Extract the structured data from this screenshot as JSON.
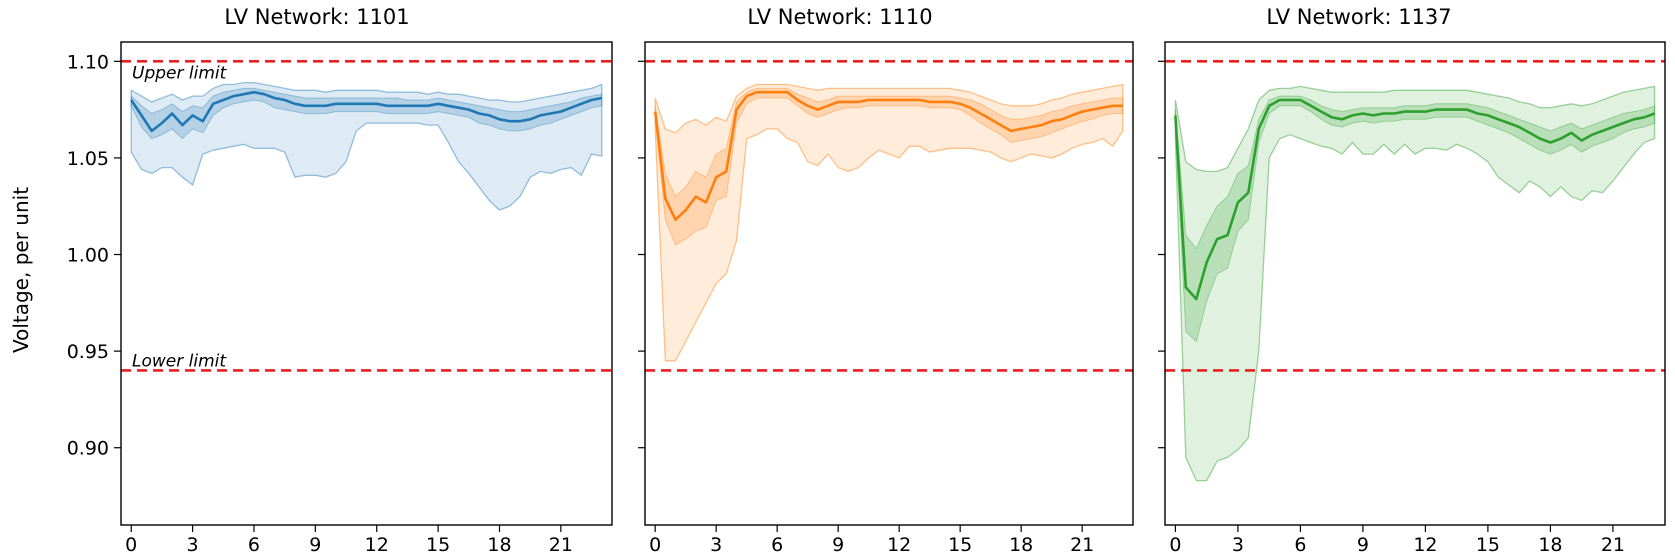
{
  "figure": {
    "ylabel": "Voltage, per unit",
    "upper_limit_label": "Upper limit",
    "lower_limit_label": "Lower limit",
    "limit_color": "#e8201e"
  },
  "chart_data": [
    {
      "type": "line",
      "title": "LV Network: 1101",
      "color": "#1f77b4",
      "xlim": [
        -0.5,
        23.5
      ],
      "ylim": [
        0.86,
        1.11
      ],
      "xticks": [
        0,
        3,
        6,
        9,
        12,
        15,
        18,
        21
      ],
      "xtick_labels": [
        "0",
        "3",
        "6",
        "9",
        "12",
        "15",
        "18",
        "21"
      ],
      "yticks": [
        0.9,
        0.95,
        1.0,
        1.05,
        1.1
      ],
      "ytick_labels": [
        "0.90",
        "0.95",
        "1.00",
        "1.05",
        "1.10"
      ],
      "upper_limit": 1.1,
      "lower_limit": 0.94,
      "x": [
        0,
        0.5,
        1,
        1.5,
        2,
        2.5,
        3,
        3.5,
        4,
        4.5,
        5,
        5.5,
        6,
        6.5,
        7,
        7.5,
        8,
        8.5,
        9,
        9.5,
        10,
        10.5,
        11,
        11.5,
        12,
        12.5,
        13,
        13.5,
        14,
        14.5,
        15,
        15.5,
        16,
        16.5,
        17,
        17.5,
        18,
        18.5,
        19,
        19.5,
        20,
        20.5,
        21,
        21.5,
        22,
        22.5,
        23
      ],
      "series": [
        {
          "role": "median",
          "values": [
            1.08,
            1.072,
            1.064,
            1.068,
            1.073,
            1.067,
            1.072,
            1.069,
            1.078,
            1.08,
            1.082,
            1.083,
            1.084,
            1.083,
            1.081,
            1.08,
            1.078,
            1.077,
            1.077,
            1.077,
            1.078,
            1.078,
            1.078,
            1.078,
            1.078,
            1.077,
            1.077,
            1.077,
            1.077,
            1.077,
            1.078,
            1.077,
            1.076,
            1.075,
            1.073,
            1.072,
            1.07,
            1.069,
            1.069,
            1.07,
            1.072,
            1.073,
            1.074,
            1.076,
            1.078,
            1.08,
            1.081
          ]
        },
        {
          "role": "inner_upper",
          "values": [
            1.082,
            1.077,
            1.073,
            1.075,
            1.078,
            1.074,
            1.077,
            1.076,
            1.082,
            1.084,
            1.085,
            1.086,
            1.086,
            1.085,
            1.084,
            1.083,
            1.082,
            1.081,
            1.081,
            1.081,
            1.081,
            1.081,
            1.081,
            1.081,
            1.081,
            1.081,
            1.081,
            1.08,
            1.08,
            1.08,
            1.081,
            1.08,
            1.079,
            1.078,
            1.077,
            1.076,
            1.075,
            1.074,
            1.074,
            1.075,
            1.076,
            1.077,
            1.078,
            1.079,
            1.081,
            1.082,
            1.083
          ]
        },
        {
          "role": "inner_lower",
          "values": [
            1.077,
            1.066,
            1.06,
            1.062,
            1.065,
            1.06,
            1.065,
            1.063,
            1.072,
            1.076,
            1.078,
            1.079,
            1.08,
            1.079,
            1.076,
            1.075,
            1.074,
            1.073,
            1.073,
            1.073,
            1.074,
            1.074,
            1.074,
            1.074,
            1.074,
            1.073,
            1.073,
            1.073,
            1.073,
            1.073,
            1.074,
            1.073,
            1.072,
            1.071,
            1.068,
            1.067,
            1.065,
            1.064,
            1.064,
            1.065,
            1.067,
            1.068,
            1.07,
            1.072,
            1.074,
            1.076,
            1.077
          ]
        },
        {
          "role": "outer_upper",
          "values": [
            1.085,
            1.082,
            1.079,
            1.081,
            1.083,
            1.08,
            1.082,
            1.082,
            1.086,
            1.088,
            1.088,
            1.089,
            1.089,
            1.088,
            1.087,
            1.086,
            1.085,
            1.085,
            1.085,
            1.084,
            1.085,
            1.085,
            1.085,
            1.085,
            1.085,
            1.084,
            1.084,
            1.084,
            1.084,
            1.083,
            1.084,
            1.083,
            1.083,
            1.082,
            1.081,
            1.08,
            1.08,
            1.079,
            1.079,
            1.08,
            1.081,
            1.082,
            1.083,
            1.084,
            1.085,
            1.086,
            1.088
          ]
        },
        {
          "role": "outer_lower",
          "values": [
            1.053,
            1.044,
            1.042,
            1.045,
            1.045,
            1.04,
            1.036,
            1.052,
            1.054,
            1.055,
            1.056,
            1.057,
            1.055,
            1.055,
            1.055,
            1.053,
            1.04,
            1.041,
            1.041,
            1.04,
            1.042,
            1.048,
            1.064,
            1.068,
            1.068,
            1.068,
            1.068,
            1.068,
            1.068,
            1.067,
            1.067,
            1.058,
            1.048,
            1.042,
            1.035,
            1.028,
            1.023,
            1.025,
            1.03,
            1.04,
            1.043,
            1.042,
            1.044,
            1.045,
            1.041,
            1.052,
            1.051
          ]
        }
      ]
    },
    {
      "type": "line",
      "title": "LV Network: 1110",
      "color": "#ff7f0e",
      "xlim": [
        -0.5,
        23.5
      ],
      "ylim": [
        0.86,
        1.11
      ],
      "xticks": [
        0,
        3,
        6,
        9,
        12,
        15,
        18,
        21
      ],
      "xtick_labels": [
        "0",
        "3",
        "6",
        "9",
        "12",
        "15",
        "18",
        "21"
      ],
      "yticks": [
        0.9,
        0.95,
        1.0,
        1.05,
        1.1
      ],
      "upper_limit": 1.1,
      "lower_limit": 0.94,
      "x": [
        0,
        0.5,
        1,
        1.5,
        2,
        2.5,
        3,
        3.5,
        4,
        4.5,
        5,
        5.5,
        6,
        6.5,
        7,
        7.5,
        8,
        8.5,
        9,
        9.5,
        10,
        10.5,
        11,
        11.5,
        12,
        12.5,
        13,
        13.5,
        14,
        14.5,
        15,
        15.5,
        16,
        16.5,
        17,
        17.5,
        18,
        18.5,
        19,
        19.5,
        20,
        20.5,
        21,
        21.5,
        22,
        22.5,
        23
      ],
      "series": [
        {
          "role": "median",
          "values": [
            1.074,
            1.029,
            1.018,
            1.023,
            1.03,
            1.027,
            1.04,
            1.043,
            1.075,
            1.082,
            1.084,
            1.084,
            1.084,
            1.084,
            1.08,
            1.077,
            1.075,
            1.077,
            1.079,
            1.079,
            1.079,
            1.08,
            1.08,
            1.08,
            1.08,
            1.08,
            1.08,
            1.079,
            1.079,
            1.079,
            1.078,
            1.076,
            1.073,
            1.07,
            1.067,
            1.064,
            1.065,
            1.066,
            1.067,
            1.069,
            1.07,
            1.072,
            1.074,
            1.075,
            1.076,
            1.077,
            1.077
          ]
        },
        {
          "role": "inner_upper",
          "values": [
            1.077,
            1.042,
            1.03,
            1.035,
            1.043,
            1.04,
            1.052,
            1.055,
            1.079,
            1.084,
            1.086,
            1.086,
            1.086,
            1.086,
            1.083,
            1.081,
            1.079,
            1.08,
            1.082,
            1.082,
            1.082,
            1.082,
            1.082,
            1.082,
            1.082,
            1.082,
            1.082,
            1.082,
            1.082,
            1.082,
            1.081,
            1.08,
            1.078,
            1.075,
            1.072,
            1.07,
            1.07,
            1.071,
            1.072,
            1.074,
            1.075,
            1.077,
            1.078,
            1.079,
            1.08,
            1.081,
            1.081
          ]
        },
        {
          "role": "inner_lower",
          "values": [
            1.07,
            1.018,
            1.005,
            1.008,
            1.012,
            1.014,
            1.028,
            1.03,
            1.068,
            1.078,
            1.081,
            1.081,
            1.081,
            1.081,
            1.077,
            1.073,
            1.071,
            1.073,
            1.075,
            1.076,
            1.076,
            1.077,
            1.077,
            1.077,
            1.077,
            1.077,
            1.077,
            1.076,
            1.076,
            1.076,
            1.075,
            1.072,
            1.068,
            1.065,
            1.062,
            1.058,
            1.059,
            1.06,
            1.061,
            1.063,
            1.065,
            1.067,
            1.069,
            1.07,
            1.072,
            1.073,
            1.073
          ]
        },
        {
          "role": "outer_upper",
          "values": [
            1.081,
            1.065,
            1.063,
            1.068,
            1.07,
            1.067,
            1.071,
            1.069,
            1.082,
            1.086,
            1.088,
            1.088,
            1.088,
            1.088,
            1.087,
            1.086,
            1.085,
            1.086,
            1.086,
            1.086,
            1.086,
            1.086,
            1.086,
            1.086,
            1.086,
            1.086,
            1.086,
            1.086,
            1.086,
            1.086,
            1.085,
            1.084,
            1.082,
            1.08,
            1.078,
            1.077,
            1.077,
            1.077,
            1.078,
            1.08,
            1.081,
            1.083,
            1.084,
            1.085,
            1.086,
            1.087,
            1.088
          ]
        },
        {
          "role": "outer_lower",
          "values": [
            1.065,
            0.945,
            0.945,
            0.955,
            0.965,
            0.975,
            0.985,
            0.99,
            1.007,
            1.06,
            1.062,
            1.065,
            1.065,
            1.06,
            1.058,
            1.048,
            1.046,
            1.052,
            1.045,
            1.043,
            1.045,
            1.05,
            1.054,
            1.052,
            1.05,
            1.056,
            1.056,
            1.053,
            1.054,
            1.055,
            1.055,
            1.055,
            1.054,
            1.053,
            1.05,
            1.048,
            1.05,
            1.052,
            1.051,
            1.05,
            1.052,
            1.055,
            1.057,
            1.058,
            1.06,
            1.056,
            1.064
          ]
        }
      ]
    },
    {
      "type": "line",
      "title": "LV Network: 1137",
      "color": "#2ca02c",
      "xlim": [
        -0.5,
        23.5
      ],
      "ylim": [
        0.86,
        1.11
      ],
      "xticks": [
        0,
        3,
        6,
        9,
        12,
        15,
        18,
        21
      ],
      "xtick_labels": [
        "0",
        "3",
        "6",
        "9",
        "12",
        "15",
        "18",
        "21"
      ],
      "yticks": [
        0.9,
        0.95,
        1.0,
        1.05,
        1.1
      ],
      "upper_limit": 1.1,
      "lower_limit": 0.94,
      "x": [
        0,
        0.5,
        1,
        1.5,
        2,
        2.5,
        3,
        3.5,
        4,
        4.5,
        5,
        5.5,
        6,
        6.5,
        7,
        7.5,
        8,
        8.5,
        9,
        9.5,
        10,
        10.5,
        11,
        11.5,
        12,
        12.5,
        13,
        13.5,
        14,
        14.5,
        15,
        15.5,
        16,
        16.5,
        17,
        17.5,
        18,
        18.5,
        19,
        19.5,
        20,
        20.5,
        21,
        21.5,
        22,
        22.5,
        23
      ],
      "series": [
        {
          "role": "median",
          "values": [
            1.072,
            0.983,
            0.977,
            0.996,
            1.008,
            1.01,
            1.027,
            1.032,
            1.065,
            1.077,
            1.08,
            1.08,
            1.08,
            1.077,
            1.074,
            1.071,
            1.07,
            1.072,
            1.073,
            1.072,
            1.073,
            1.073,
            1.074,
            1.074,
            1.074,
            1.075,
            1.075,
            1.075,
            1.075,
            1.073,
            1.072,
            1.07,
            1.068,
            1.066,
            1.063,
            1.06,
            1.058,
            1.06,
            1.063,
            1.059,
            1.062,
            1.064,
            1.066,
            1.068,
            1.07,
            1.071,
            1.073
          ]
        },
        {
          "role": "inner_upper",
          "values": [
            1.075,
            1.01,
            1.003,
            1.015,
            1.025,
            1.03,
            1.042,
            1.046,
            1.07,
            1.08,
            1.082,
            1.082,
            1.082,
            1.08,
            1.077,
            1.075,
            1.074,
            1.075,
            1.076,
            1.076,
            1.076,
            1.076,
            1.077,
            1.077,
            1.077,
            1.078,
            1.078,
            1.078,
            1.078,
            1.077,
            1.076,
            1.074,
            1.072,
            1.07,
            1.068,
            1.066,
            1.064,
            1.066,
            1.068,
            1.065,
            1.067,
            1.069,
            1.071,
            1.073,
            1.074,
            1.075,
            1.077
          ]
        },
        {
          "role": "inner_lower",
          "values": [
            1.068,
            0.96,
            0.955,
            0.976,
            0.99,
            0.993,
            1.012,
            1.018,
            1.058,
            1.073,
            1.077,
            1.077,
            1.077,
            1.074,
            1.07,
            1.067,
            1.066,
            1.068,
            1.069,
            1.068,
            1.069,
            1.069,
            1.07,
            1.07,
            1.07,
            1.071,
            1.071,
            1.071,
            1.071,
            1.069,
            1.067,
            1.065,
            1.063,
            1.06,
            1.057,
            1.054,
            1.052,
            1.054,
            1.057,
            1.053,
            1.056,
            1.058,
            1.06,
            1.063,
            1.065,
            1.066,
            1.068
          ]
        },
        {
          "role": "outer_upper",
          "values": [
            1.08,
            1.048,
            1.044,
            1.043,
            1.043,
            1.045,
            1.055,
            1.065,
            1.08,
            1.085,
            1.086,
            1.086,
            1.087,
            1.086,
            1.085,
            1.084,
            1.084,
            1.084,
            1.084,
            1.084,
            1.084,
            1.085,
            1.085,
            1.085,
            1.085,
            1.085,
            1.085,
            1.085,
            1.085,
            1.084,
            1.083,
            1.082,
            1.081,
            1.079,
            1.078,
            1.076,
            1.076,
            1.077,
            1.078,
            1.077,
            1.078,
            1.08,
            1.082,
            1.084,
            1.085,
            1.086,
            1.087
          ]
        },
        {
          "role": "outer_lower",
          "values": [
            1.06,
            0.895,
            0.883,
            0.883,
            0.893,
            0.895,
            0.899,
            0.905,
            0.95,
            1.05,
            1.06,
            1.062,
            1.06,
            1.058,
            1.056,
            1.055,
            1.052,
            1.058,
            1.052,
            1.052,
            1.057,
            1.052,
            1.057,
            1.052,
            1.055,
            1.055,
            1.054,
            1.057,
            1.055,
            1.052,
            1.048,
            1.04,
            1.036,
            1.032,
            1.038,
            1.035,
            1.03,
            1.035,
            1.03,
            1.028,
            1.033,
            1.032,
            1.038,
            1.045,
            1.052,
            1.058,
            1.06
          ]
        }
      ]
    }
  ]
}
